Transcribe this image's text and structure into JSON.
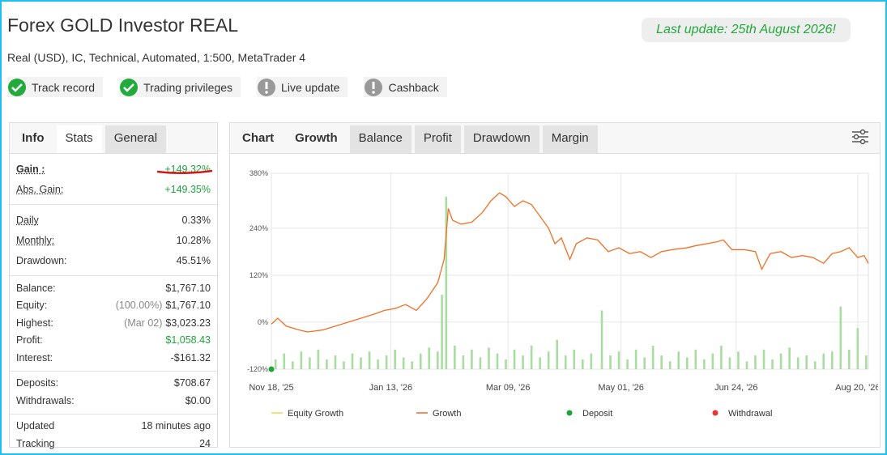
{
  "header": {
    "title": "Forex GOLD Investor REAL",
    "last_update": "Last update: 25th August 2026!",
    "subtitle": "Real (USD), IC, Technical, Automated, 1:500, MetaTrader 4"
  },
  "badges": [
    {
      "label": "Track record",
      "status": "ok"
    },
    {
      "label": "Trading privileges",
      "status": "ok"
    },
    {
      "label": "Live update",
      "status": "warn"
    },
    {
      "label": "Cashback",
      "status": "warn"
    }
  ],
  "stats_panel": {
    "tabs": [
      "Info",
      "Stats",
      "General"
    ],
    "active_tab": 0,
    "groups": [
      [
        {
          "label": "Gain :",
          "value": "+149.32%",
          "color": "green",
          "strong": true
        },
        {
          "label": "Abs. Gain:",
          "value": "+149.35%",
          "color": "green"
        }
      ],
      [
        {
          "label": "Daily",
          "value": "0.33%"
        },
        {
          "label": "Monthly:",
          "value": "10.28%"
        },
        {
          "label": "Drawdown:",
          "value": "45.51%"
        }
      ],
      [
        {
          "label": "Balance:",
          "value": "$1,767.10"
        },
        {
          "label": "Equity:",
          "note": "(100.00%)",
          "value": "$1,767.10"
        },
        {
          "label": "Highest:",
          "note": "(Mar 02)",
          "value": "$3,023.23"
        },
        {
          "label": "Profit:",
          "value": "$1,058.43",
          "color": "green"
        },
        {
          "label": "Interest:",
          "value": "-$161.32"
        }
      ],
      [
        {
          "label": "Deposits:",
          "value": "$708.67"
        },
        {
          "label": "Withdrawals:",
          "value": "$0.00"
        }
      ],
      [
        {
          "label": "Updated",
          "value": "18 minutes ago"
        },
        {
          "label": "Tracking",
          "value": "24"
        }
      ]
    ]
  },
  "chart_panel": {
    "tabs": [
      "Chart",
      "Growth",
      "Balance",
      "Profit",
      "Drawdown",
      "Margin"
    ],
    "active_tab": 1
  },
  "chart_data": {
    "type": "line",
    "xlim": [
      "2025-11-18",
      "2026-08-25"
    ],
    "xticks": [
      {
        "value": "2025-11-18",
        "label": "Nov 18, '25"
      },
      {
        "value": "2026-01-13",
        "label": "Jan 13, '26"
      },
      {
        "value": "2026-03-09",
        "label": "Mar 09, '26"
      },
      {
        "value": "2026-05-01",
        "label": "May 01, '26"
      },
      {
        "value": "2026-06-24",
        "label": "Jun 24, '26"
      },
      {
        "value": "2026-08-20",
        "label": "Aug 20, '26"
      }
    ],
    "ylim": [
      -120,
      380
    ],
    "yticks": [
      {
        "value": -120,
        "label": "-120%"
      },
      {
        "value": 0,
        "label": "0%"
      },
      {
        "value": 120,
        "label": "120%"
      },
      {
        "value": 240,
        "label": "240%"
      },
      {
        "value": 380,
        "label": "380%"
      }
    ],
    "grid": true,
    "bars": {
      "color": "#a9dca0",
      "x": [
        "2025-11-20",
        "2025-11-24",
        "2025-11-28",
        "2025-12-02",
        "2025-12-06",
        "2025-12-10",
        "2025-12-14",
        "2025-12-18",
        "2025-12-22",
        "2025-12-26",
        "2025-12-30",
        "2026-01-03",
        "2026-01-07",
        "2026-01-11",
        "2026-01-15",
        "2026-01-19",
        "2026-01-23",
        "2026-01-27",
        "2026-01-31",
        "2026-02-04",
        "2026-02-06",
        "2026-02-08",
        "2026-02-12",
        "2026-02-16",
        "2026-02-20",
        "2026-02-24",
        "2026-02-28",
        "2026-03-04",
        "2026-03-08",
        "2026-03-12",
        "2026-03-16",
        "2026-03-20",
        "2026-03-24",
        "2026-03-28",
        "2026-04-01",
        "2026-04-05",
        "2026-04-09",
        "2026-04-13",
        "2026-04-17",
        "2026-04-22",
        "2026-04-26",
        "2026-04-30",
        "2026-05-04",
        "2026-05-08",
        "2026-05-12",
        "2026-05-16",
        "2026-05-20",
        "2026-05-24",
        "2026-05-28",
        "2026-06-01",
        "2026-06-05",
        "2026-06-09",
        "2026-06-13",
        "2026-06-17",
        "2026-06-21",
        "2026-06-25",
        "2026-06-29",
        "2026-07-03",
        "2026-07-07",
        "2026-07-11",
        "2026-07-15",
        "2026-07-19",
        "2026-07-23",
        "2026-07-27",
        "2026-07-31",
        "2026-08-04",
        "2026-08-08",
        "2026-08-12",
        "2026-08-16",
        "2026-08-20",
        "2026-08-24"
      ],
      "values": [
        -95,
        -80,
        -100,
        -75,
        -90,
        -70,
        -95,
        -85,
        -100,
        -80,
        -90,
        -75,
        -95,
        -85,
        -70,
        -90,
        -100,
        -80,
        -65,
        -75,
        70,
        320,
        -60,
        -85,
        -70,
        -90,
        -65,
        -80,
        -95,
        -70,
        -85,
        -60,
        -90,
        -75,
        -45,
        -85,
        -70,
        -95,
        -80,
        30,
        -85,
        -75,
        -95,
        -70,
        -90,
        -60,
        -85,
        -100,
        -75,
        -90,
        -70,
        -95,
        -80,
        -60,
        -90,
        -75,
        -100,
        -85,
        -70,
        -95,
        -80,
        -65,
        -90,
        -85,
        -100,
        -80,
        -75,
        40,
        -70,
        -15,
        -85
      ]
    },
    "series": [
      {
        "name": "Equity Growth",
        "color": "#f2d34f",
        "kind": "line",
        "x": [
          "2025-11-18",
          "2025-11-21",
          "2025-11-25",
          "2025-12-01",
          "2025-12-05",
          "2025-12-12",
          "2025-12-18",
          "2025-12-24",
          "2025-12-30",
          "2026-01-05",
          "2026-01-10",
          "2026-01-15",
          "2026-01-20",
          "2026-01-25",
          "2026-01-30",
          "2026-02-04",
          "2026-02-07",
          "2026-02-09",
          "2026-02-11",
          "2026-02-15",
          "2026-02-20",
          "2026-02-25",
          "2026-03-01",
          "2026-03-05",
          "2026-03-08",
          "2026-03-12",
          "2026-03-16",
          "2026-03-20",
          "2026-03-24",
          "2026-03-28",
          "2026-03-31",
          "2026-04-03",
          "2026-04-07",
          "2026-04-10",
          "2026-04-15",
          "2026-04-20",
          "2026-04-25",
          "2026-04-30",
          "2026-05-05",
          "2026-05-10",
          "2026-05-15",
          "2026-05-20",
          "2026-05-25",
          "2026-06-01",
          "2026-06-05",
          "2026-06-10",
          "2026-06-15",
          "2026-06-18",
          "2026-06-22",
          "2026-06-28",
          "2026-07-03",
          "2026-07-06",
          "2026-07-10",
          "2026-07-15",
          "2026-07-20",
          "2026-07-25",
          "2026-07-30",
          "2026-08-04",
          "2026-08-08",
          "2026-08-12",
          "2026-08-16",
          "2026-08-20",
          "2026-08-23",
          "2026-08-25"
        ],
        "values": [
          -5,
          10,
          -10,
          -20,
          -25,
          -20,
          -10,
          0,
          10,
          20,
          30,
          35,
          45,
          30,
          60,
          100,
          160,
          290,
          260,
          250,
          255,
          280,
          310,
          330,
          320,
          295,
          310,
          300,
          270,
          240,
          200,
          215,
          160,
          200,
          215,
          210,
          180,
          190,
          175,
          180,
          165,
          180,
          185,
          190,
          195,
          200,
          205,
          210,
          185,
          185,
          180,
          135,
          175,
          180,
          165,
          170,
          165,
          150,
          175,
          180,
          190,
          165,
          170,
          150
        ]
      },
      {
        "name": "Growth",
        "color": "#f4692a",
        "kind": "line",
        "x": [
          "2025-11-18",
          "2025-11-21",
          "2025-11-25",
          "2025-12-01",
          "2025-12-05",
          "2025-12-12",
          "2025-12-18",
          "2025-12-24",
          "2025-12-30",
          "2026-01-05",
          "2026-01-10",
          "2026-01-15",
          "2026-01-20",
          "2026-01-25",
          "2026-01-30",
          "2026-02-04",
          "2026-02-07",
          "2026-02-09",
          "2026-02-11",
          "2026-02-15",
          "2026-02-20",
          "2026-02-25",
          "2026-03-01",
          "2026-03-05",
          "2026-03-08",
          "2026-03-12",
          "2026-03-16",
          "2026-03-20",
          "2026-03-24",
          "2026-03-28",
          "2026-03-31",
          "2026-04-03",
          "2026-04-07",
          "2026-04-10",
          "2026-04-15",
          "2026-04-20",
          "2026-04-25",
          "2026-04-30",
          "2026-05-05",
          "2026-05-10",
          "2026-05-15",
          "2026-05-20",
          "2026-05-25",
          "2026-06-01",
          "2026-06-05",
          "2026-06-10",
          "2026-06-15",
          "2026-06-18",
          "2026-06-22",
          "2026-06-28",
          "2026-07-03",
          "2026-07-06",
          "2026-07-10",
          "2026-07-15",
          "2026-07-20",
          "2026-07-25",
          "2026-07-30",
          "2026-08-04",
          "2026-08-08",
          "2026-08-12",
          "2026-08-16",
          "2026-08-20",
          "2026-08-23",
          "2026-08-25"
        ],
        "values": [
          -5,
          10,
          -10,
          -20,
          -25,
          -20,
          -10,
          0,
          10,
          20,
          30,
          35,
          45,
          30,
          60,
          100,
          160,
          290,
          260,
          250,
          255,
          280,
          310,
          330,
          320,
          295,
          310,
          300,
          270,
          240,
          200,
          215,
          160,
          200,
          215,
          210,
          180,
          190,
          175,
          180,
          165,
          180,
          185,
          190,
          195,
          200,
          205,
          210,
          185,
          185,
          180,
          135,
          175,
          180,
          165,
          170,
          165,
          150,
          175,
          180,
          190,
          165,
          170,
          150
        ]
      },
      {
        "name": "Deposit",
        "color": "#1fa43a",
        "kind": "dot",
        "x": [
          "2025-11-18"
        ],
        "values": [
          -120
        ]
      },
      {
        "name": "Withdrawal",
        "color": "#e53935",
        "kind": "dot",
        "x": [],
        "values": []
      }
    ]
  }
}
